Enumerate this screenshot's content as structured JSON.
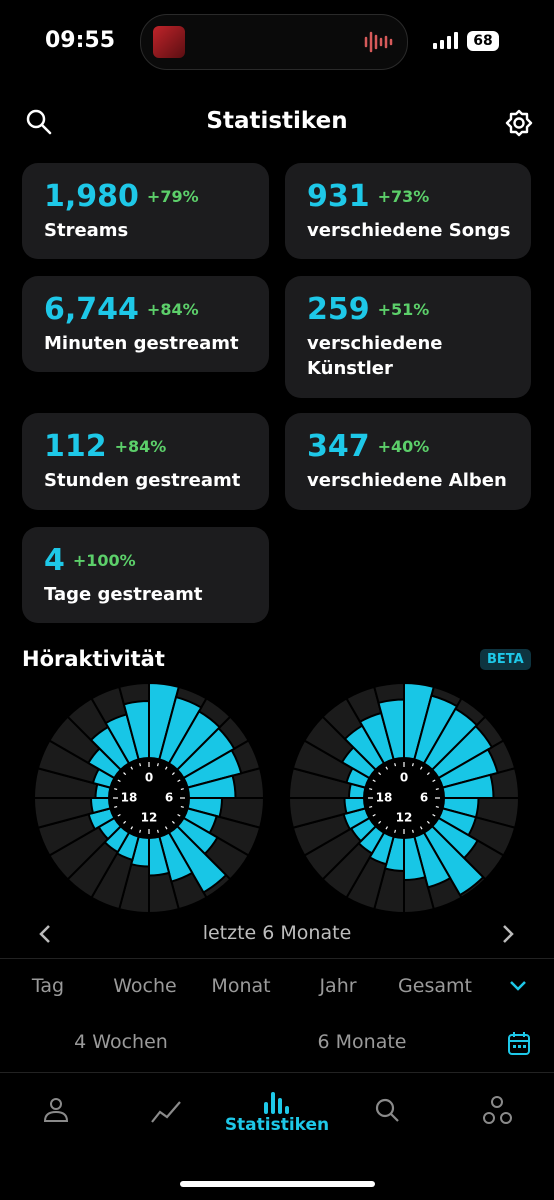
{
  "status_bar": {
    "time": "09:55",
    "battery": "68"
  },
  "header": {
    "title": "Statistiken"
  },
  "stats": [
    {
      "value": "1,980",
      "change": "+79%",
      "label": "Streams"
    },
    {
      "value": "931",
      "change": "+73%",
      "label": "verschiedene Songs"
    },
    {
      "value": "6,744",
      "change": "+84%",
      "label": "Minuten gestreamt"
    },
    {
      "value": "259",
      "change": "+51%",
      "label": "verschiedene Künstler"
    },
    {
      "value": "112",
      "change": "+84%",
      "label": "Stunden gestreamt"
    },
    {
      "value": "347",
      "change": "+40%",
      "label": "verschiedene Alben"
    },
    {
      "value": "4",
      "change": "+100%",
      "label": "Tage gestreamt"
    }
  ],
  "activity": {
    "title": "Höraktivität",
    "badge": "BETA",
    "hour_labels": [
      "0",
      "6",
      "12",
      "18"
    ],
    "rlim": [
      0,
      100
    ],
    "color": "#18c6e6",
    "charts": [
      {
        "type": "polar-bar",
        "values": [
          100,
          86,
          80,
          78,
          74,
          62,
          44,
          40,
          52,
          92,
          62,
          50,
          38,
          32,
          30,
          24,
          30,
          24,
          18,
          24,
          40,
          56,
          62,
          76
        ]
      },
      {
        "type": "polar-bar",
        "values": [
          100,
          88,
          84,
          82,
          76,
          66,
          46,
          46,
          60,
          96,
          70,
          56,
          44,
          38,
          32,
          28,
          30,
          26,
          20,
          26,
          42,
          58,
          64,
          78
        ]
      }
    ],
    "period": "letzte 6 Monate"
  },
  "tabs": [
    "Tag",
    "Woche",
    "Monat",
    "Jahr",
    "Gesamt"
  ],
  "ranges": [
    "4 Wochen",
    "6 Monate"
  ],
  "nav": {
    "active": "Statistiken"
  }
}
